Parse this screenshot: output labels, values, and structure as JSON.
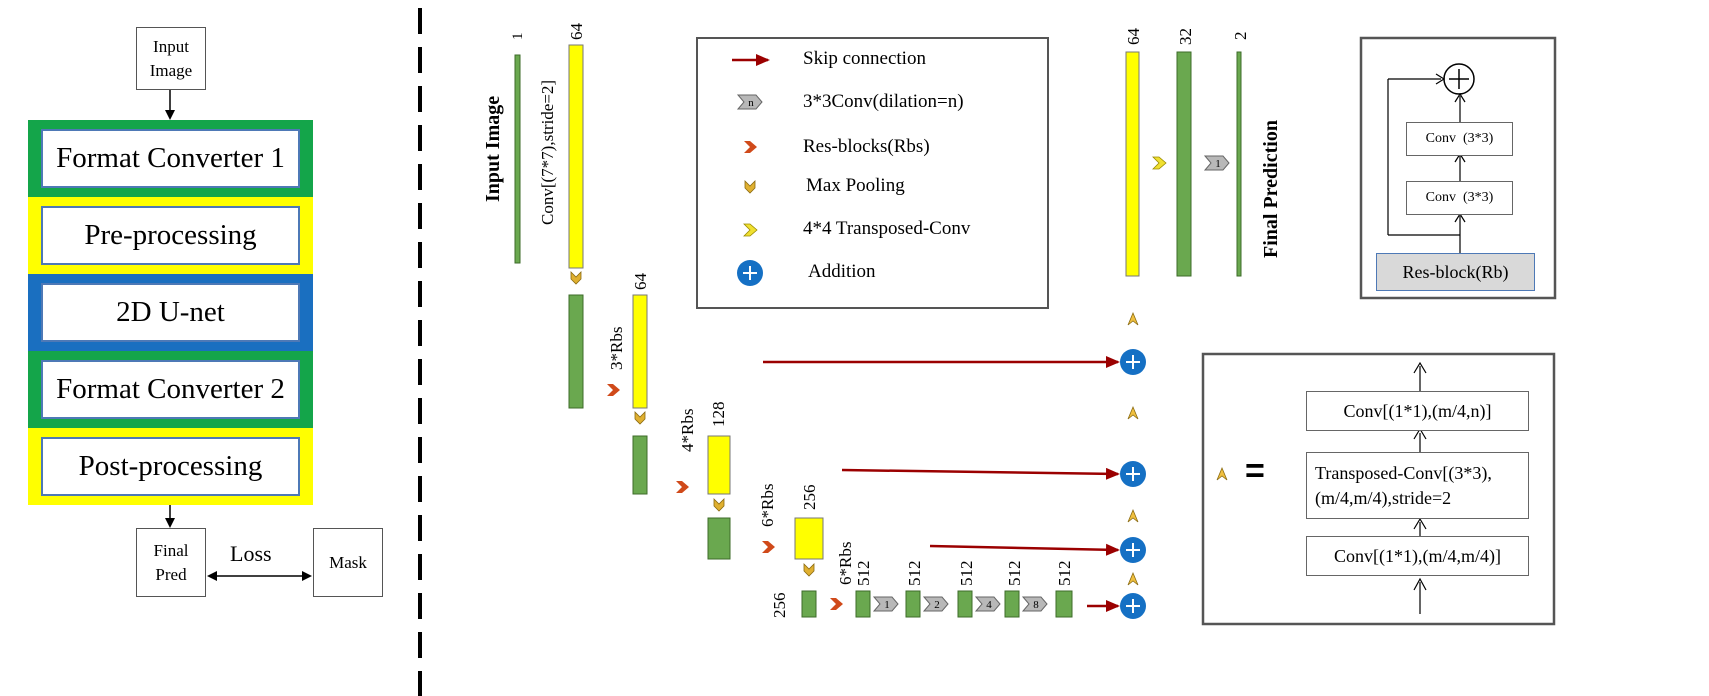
{
  "pipeline": {
    "input_label": "Input Image",
    "stages": [
      "Format Converter 1",
      "Pre-processing",
      "2D U-net",
      "Format Converter 2",
      "Post-processing"
    ],
    "final_pred_label": "Final Pred",
    "loss_label": "Loss",
    "mask_label": "Mask",
    "colors": {
      "green": "#14a54a",
      "yellow": "#ffff00",
      "blue": "#1a6fc0"
    }
  },
  "network": {
    "input_image_label": "Input Image",
    "final_prediction_label": "Final Prediction",
    "first_conv_label": "Conv[(7*7),stride=2]",
    "channels": {
      "input": "1",
      "conv1": "64",
      "rbs3": "64",
      "rbs4": "128",
      "rbs6": "256",
      "bottleneck": "256",
      "dil1": "512",
      "dil2": "512",
      "dil3": "512",
      "dil4": "512",
      "dil5": "512",
      "up1": "64",
      "up2": "32",
      "out": "2"
    },
    "stage_labels": {
      "rbs3": "3*Rbs",
      "rbs4": "4*Rbs",
      "rbs6a": "6*Rbs",
      "rbs6b": "6*Rbs"
    },
    "dilations": [
      "1",
      "2",
      "4",
      "8"
    ],
    "final_dilation": "1",
    "colors": {
      "green": "#6aa84f",
      "yellow": "#ffff00",
      "arrow": "#9b0000",
      "addition": "#1570c4"
    }
  },
  "legend": {
    "skip": "Skip connection",
    "conv_dilation": "3*3Conv(dilation=n)",
    "conv_icon_letter": "n",
    "resblocks": "Res-blocks(Rbs)",
    "maxpool": "Max Pooling",
    "transposed": "4*4 Transposed-Conv",
    "addition": "Addition"
  },
  "resblock": {
    "conv_top": "Conv  (3*3)",
    "conv_bottom": "Conv  (3*3)",
    "label": "Res-block(Rb)"
  },
  "upblock": {
    "equals": "=",
    "conv_top": "Conv[(1*1),(m/4,n)]",
    "transposed_line1": "Transposed-Conv[(3*3),",
    "transposed_line2": "(m/4,m/4),stride=2",
    "conv_bottom": "Conv[(1*1),(m/4,m/4)]"
  }
}
